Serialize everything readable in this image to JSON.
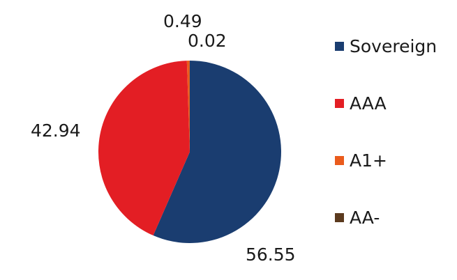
{
  "chart_data": {
    "type": "pie",
    "categories": [
      "Sovereign",
      "AAA",
      "A1+",
      "AA-"
    ],
    "values": [
      56.55,
      42.94,
      0.49,
      0.02
    ],
    "labels": [
      "56.55",
      "42.94",
      "0.49",
      "0.02"
    ],
    "colors": [
      "#1a3d70",
      "#e31e24",
      "#ea5b1c",
      "#5b3a1e"
    ],
    "legend_position": "right",
    "title": ""
  }
}
